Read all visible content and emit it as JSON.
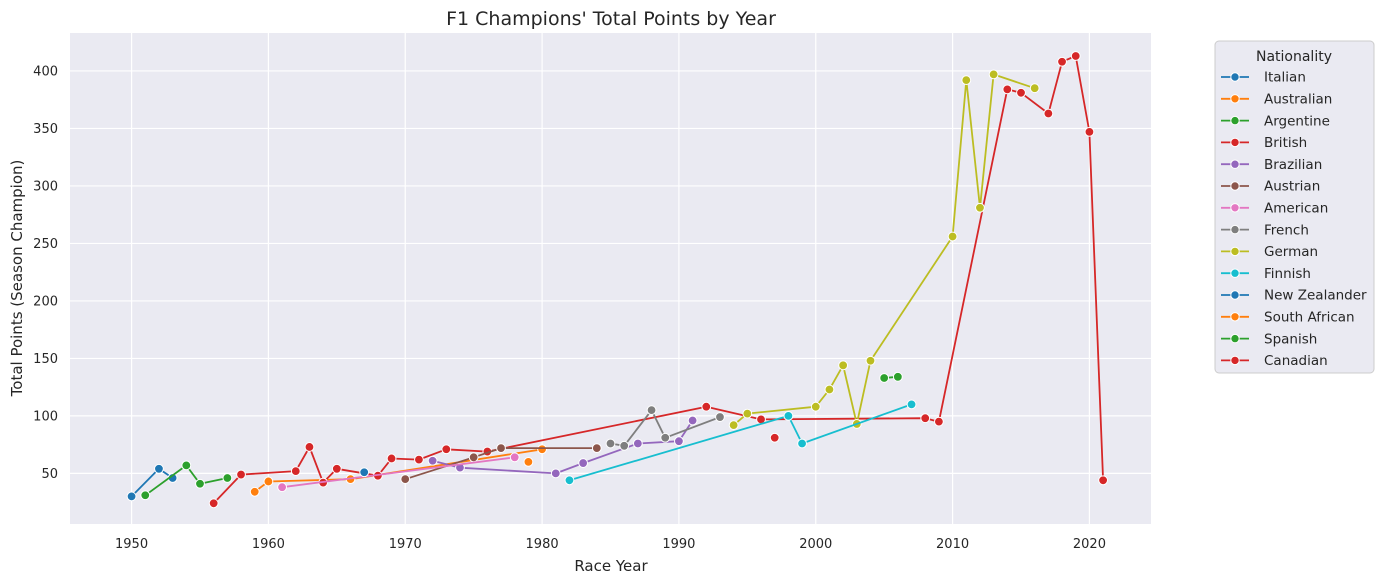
{
  "chart_data": {
    "type": "line",
    "title": "F1 Champions' Total Points by Year",
    "xlabel": "Race Year",
    "ylabel": "Total Points (Season Champion)",
    "xlim": [
      1945.5,
      2024.5
    ],
    "ylim": [
      6,
      433
    ],
    "xticks": [
      1950,
      1960,
      1970,
      1980,
      1990,
      2000,
      2010,
      2020
    ],
    "yticks": [
      50,
      100,
      150,
      200,
      250,
      300,
      350,
      400
    ],
    "grid": true,
    "legend": {
      "title": "Nationality",
      "placement": "outside-right"
    },
    "series": [
      {
        "name": "Italian",
        "color": "#1f77b4",
        "x": [
          1950,
          1952,
          1953
        ],
        "y": [
          30,
          54,
          46
        ]
      },
      {
        "name": "Australian",
        "color": "#ff7f0e",
        "x": [
          1959,
          1960,
          1966,
          1980
        ],
        "y": [
          34,
          43,
          45,
          71
        ]
      },
      {
        "name": "Argentine",
        "color": "#2ca02c",
        "x": [
          1951,
          1954,
          1955,
          1957
        ],
        "y": [
          31,
          57,
          41,
          46
        ]
      },
      {
        "name": "British",
        "color": "#d62728",
        "x": [
          1956,
          1958,
          1962,
          1963,
          1964,
          1965,
          1968,
          1969,
          1971,
          1973,
          1976,
          1992,
          1996,
          2008,
          2009,
          2014,
          2015,
          2017,
          2018,
          2019,
          2020,
          2021
        ],
        "y": [
          24,
          49,
          52,
          73,
          42,
          54,
          48,
          63,
          62,
          71,
          69,
          108,
          97,
          98,
          95,
          384,
          381,
          363,
          408,
          413,
          347,
          44
        ]
      },
      {
        "name": "Brazilian",
        "color": "#9467bd",
        "x": [
          1972,
          1974,
          1981,
          1983,
          1987,
          1990,
          1991
        ],
        "y": [
          61,
          55,
          50,
          59,
          76,
          78,
          96
        ]
      },
      {
        "name": "Austrian",
        "color": "#8c564b",
        "x": [
          1970,
          1975,
          1977,
          1984
        ],
        "y": [
          45,
          64,
          72,
          72
        ]
      },
      {
        "name": "American",
        "color": "#e377c2",
        "x": [
          1961,
          1978
        ],
        "y": [
          38,
          64
        ]
      },
      {
        "name": "French",
        "color": "#7f7f7f",
        "x": [
          1985,
          1986,
          1988,
          1989,
          1993
        ],
        "y": [
          76,
          74,
          105,
          81,
          99
        ]
      },
      {
        "name": "German",
        "color": "#bcbd22",
        "x": [
          1994,
          1995,
          2000,
          2001,
          2002,
          2003,
          2004,
          2010,
          2011,
          2012,
          2013,
          2016
        ],
        "y": [
          92,
          102,
          108,
          123,
          144,
          93,
          148,
          256,
          392,
          281,
          397,
          385
        ]
      },
      {
        "name": "Finnish",
        "color": "#17becf",
        "x": [
          1982,
          1998,
          1999,
          2007
        ],
        "y": [
          44,
          100,
          76,
          110
        ]
      },
      {
        "name": "New Zealander",
        "color": "#1f77b4",
        "x": [
          1967
        ],
        "y": [
          51
        ]
      },
      {
        "name": "South African",
        "color": "#ff7f0e",
        "x": [
          1979
        ],
        "y": [
          60
        ]
      },
      {
        "name": "Spanish",
        "color": "#2ca02c",
        "x": [
          2005,
          2006
        ],
        "y": [
          133,
          134
        ]
      },
      {
        "name": "Canadian",
        "color": "#d62728",
        "x": [
          1997
        ],
        "y": [
          81
        ]
      }
    ]
  }
}
